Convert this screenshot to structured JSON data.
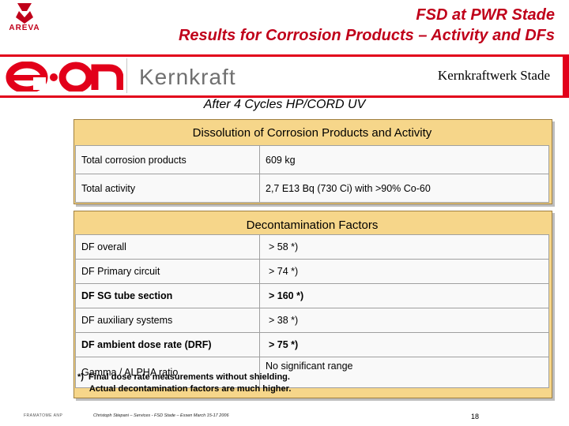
{
  "logo": {
    "areva_text": "AREVA"
  },
  "title": {
    "line1": "FSD at PWR Stade",
    "line2": "Results for Corrosion Products – Activity and DFs"
  },
  "banner": {
    "eon_text": "e·on",
    "kernkraft": "Kernkraft",
    "plant": "Kernkraftwerk Stade",
    "color": "#e2001a"
  },
  "subtitle": "After 4 Cycles HP/CORD UV",
  "dissolution": {
    "heading": "Dissolution of Corrosion Products and Activity",
    "rows": [
      {
        "label": "Total corrosion products",
        "value": "609 kg"
      },
      {
        "label": "Total activity",
        "value": "2,7 E13 Bq (730 Ci) with >90% Co-60"
      }
    ]
  },
  "decon": {
    "heading": "Decontamination Factors",
    "rows": [
      {
        "label": "DF overall",
        "value": "> 58   *)"
      },
      {
        "label": "DF Primary circuit",
        "value": "> 74   *)"
      },
      {
        "label": "DF SG tube section",
        "value": "> 160   *)"
      },
      {
        "label": "DF auxiliary systems",
        "value": "> 38   *)"
      },
      {
        "label": "DF ambient dose rate (DRF)",
        "value": ">  75   *)"
      },
      {
        "label": "Gamma / ALPHA ratio",
        "value": "No significant range"
      }
    ],
    "footnote_line1": "*)  Final dose rate measurements without shielding.",
    "footnote_line2": "     Actual decontamination factors are much higher."
  },
  "footer": {
    "left": "FRAMATOME ANP",
    "middle": "Christoph Stiepani – Services - FSD Stade – Essen March 15-17 2006",
    "page": "18"
  },
  "colors": {
    "panel_bg": "#f6d68a",
    "title_red": "#c0001a"
  }
}
